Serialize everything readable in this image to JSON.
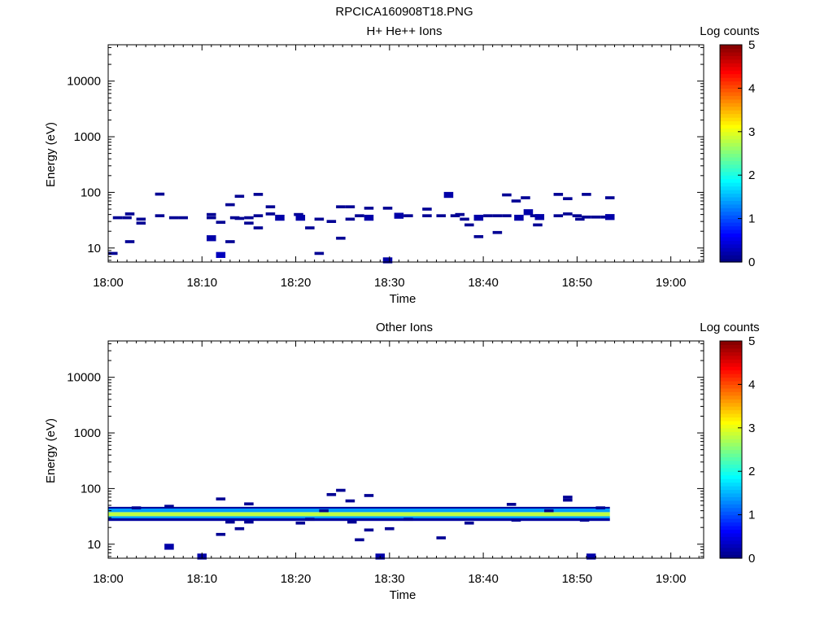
{
  "file_title": "RPCICA160908T18.PNG",
  "chart_data": [
    {
      "type": "heatmap",
      "title": "H+ He++ Ions",
      "xlabel": "Time",
      "ylabel": "Energy (eV)",
      "x_ticks": [
        "18:00",
        "18:10",
        "18:20",
        "18:30",
        "18:40",
        "18:50",
        "19:00"
      ],
      "x_range_min": [
        0,
        63.5
      ],
      "y_ticks": [
        "10",
        "100",
        "1000",
        "10000"
      ],
      "y_log": true,
      "y_range_ev": [
        5.6,
        45000
      ],
      "colorbar": {
        "label": "Log counts",
        "ticks": [
          "0",
          "1",
          "2",
          "3",
          "4",
          "5"
        ],
        "range": [
          0,
          5
        ]
      },
      "cells": [
        [
          0,
          8,
          0.1
        ],
        [
          0.5,
          35,
          0.1
        ],
        [
          1.5,
          35,
          0.1
        ],
        [
          1.8,
          13,
          0.1
        ],
        [
          1.8,
          41,
          0.1
        ],
        [
          3,
          33,
          0.1
        ],
        [
          3,
          28,
          0.1
        ],
        [
          5,
          38,
          0.1
        ],
        [
          5,
          93,
          0.1
        ],
        [
          6.5,
          35,
          0.1
        ],
        [
          7.5,
          35,
          0.1
        ],
        [
          10.5,
          40,
          0.1
        ],
        [
          10.5,
          35,
          0.1
        ],
        [
          10.5,
          15,
          0.2
        ],
        [
          11.5,
          7.5,
          0.3
        ],
        [
          11.5,
          29,
          0.1
        ],
        [
          12.5,
          60,
          0.1
        ],
        [
          12.5,
          13,
          0.1
        ],
        [
          13,
          35,
          0.1
        ],
        [
          13.5,
          85,
          0.1
        ],
        [
          13.5,
          34,
          0.1
        ],
        [
          14.5,
          28,
          0.1
        ],
        [
          14.5,
          35,
          0.1
        ],
        [
          15.5,
          92,
          0.1
        ],
        [
          15.5,
          38,
          0.1
        ],
        [
          15.5,
          23,
          0.1
        ],
        [
          16.8,
          55,
          0.1
        ],
        [
          16.8,
          41,
          0.1
        ],
        [
          17.8,
          35,
          0.2
        ],
        [
          19.8,
          40,
          0.1
        ],
        [
          20,
          35,
          0.2
        ],
        [
          21,
          23,
          0.1
        ],
        [
          22,
          33,
          0.1
        ],
        [
          22,
          8,
          0.1
        ],
        [
          23.3,
          30,
          0.1
        ],
        [
          24.3,
          55,
          0.1
        ],
        [
          24.3,
          15,
          0.1
        ],
        [
          25.3,
          55,
          0.1
        ],
        [
          25.3,
          33,
          0.1
        ],
        [
          26.3,
          38,
          0.1
        ],
        [
          27.3,
          52,
          0.1
        ],
        [
          27.3,
          35,
          0.2
        ],
        [
          29.3,
          52,
          0.1
        ],
        [
          29.3,
          6,
          0.2
        ],
        [
          30.5,
          38,
          0.2
        ],
        [
          31.5,
          38,
          0.1
        ],
        [
          33.5,
          38,
          0.1
        ],
        [
          33.5,
          50,
          0.1
        ],
        [
          35,
          38,
          0.1
        ],
        [
          35.8,
          90,
          0.2
        ],
        [
          36.5,
          38,
          0.1
        ],
        [
          37,
          40,
          0.1
        ],
        [
          37.5,
          33,
          0.1
        ],
        [
          38,
          26,
          0.1
        ],
        [
          39,
          35,
          0.2
        ],
        [
          39,
          16,
          0.1
        ],
        [
          40,
          38,
          0.1
        ],
        [
          41,
          38,
          0.1
        ],
        [
          41,
          19,
          0.1
        ],
        [
          42,
          90,
          0.1
        ],
        [
          42,
          38,
          0.1
        ],
        [
          43,
          70,
          0.1
        ],
        [
          43.3,
          35,
          0.2
        ],
        [
          44,
          80,
          0.1
        ],
        [
          44.3,
          44,
          0.2
        ],
        [
          45,
          38,
          0.1
        ],
        [
          45.3,
          26,
          0.1
        ],
        [
          45.5,
          36,
          0.2
        ],
        [
          47.5,
          92,
          0.1
        ],
        [
          47.5,
          38,
          0.1
        ],
        [
          48.5,
          77,
          0.1
        ],
        [
          48.5,
          41,
          0.1
        ],
        [
          49.5,
          38,
          0.1
        ],
        [
          49.8,
          33,
          0.1
        ],
        [
          50.5,
          92,
          0.1
        ],
        [
          50.5,
          36,
          0.1
        ],
        [
          51.5,
          36,
          0.1
        ],
        [
          52.5,
          36,
          0.1
        ],
        [
          53,
          80,
          0.1
        ],
        [
          53,
          36,
          0.2
        ]
      ]
    },
    {
      "type": "heatmap",
      "title": "Other Ions",
      "xlabel": "Time",
      "ylabel": "Energy (eV)",
      "x_ticks": [
        "18:00",
        "18:10",
        "18:20",
        "18:30",
        "18:40",
        "18:50",
        "19:00"
      ],
      "x_range_min": [
        0,
        63.5
      ],
      "y_ticks": [
        "10",
        "100",
        "1000",
        "10000"
      ],
      "y_log": true,
      "y_range_ev": [
        5.6,
        45000
      ],
      "colorbar": {
        "label": "Log counts",
        "ticks": [
          "0",
          "1",
          "2",
          "3",
          "4",
          "5"
        ],
        "range": [
          0,
          5
        ]
      },
      "band": {
        "t_start_min": 0,
        "t_end_min": 53.5,
        "energy_ev": [
          27,
          46
        ],
        "core_log_counts": 2.8,
        "edge_log_counts": 1.4
      },
      "cells": [
        [
          2.5,
          45,
          0.1
        ],
        [
          6,
          48,
          0.1
        ],
        [
          6,
          9,
          0.2
        ],
        [
          9.5,
          6,
          0.2
        ],
        [
          11.5,
          65,
          0.1
        ],
        [
          11.5,
          15,
          0.1
        ],
        [
          12.5,
          25,
          0.1
        ],
        [
          13.5,
          19,
          0.1
        ],
        [
          14.5,
          53,
          0.1
        ],
        [
          14.5,
          25,
          0.1
        ],
        [
          20,
          24,
          0.1
        ],
        [
          21,
          28,
          0.1
        ],
        [
          22.5,
          40,
          0.1
        ],
        [
          23.3,
          78,
          0.1
        ],
        [
          24.3,
          93,
          0.1
        ],
        [
          25.3,
          60,
          0.1
        ],
        [
          25.5,
          25,
          0.1
        ],
        [
          26.3,
          12,
          0.1
        ],
        [
          27.3,
          75,
          0.1
        ],
        [
          27.3,
          18,
          0.1
        ],
        [
          28.5,
          6,
          0.2
        ],
        [
          29.5,
          19,
          0.1
        ],
        [
          31.5,
          28,
          0.1
        ],
        [
          35,
          13,
          0.1
        ],
        [
          38,
          24,
          0.1
        ],
        [
          42.5,
          52,
          0.1
        ],
        [
          43,
          27,
          0.1
        ],
        [
          46.5,
          40,
          0.1
        ],
        [
          48.5,
          62,
          0.1
        ],
        [
          48.5,
          70,
          0.1
        ],
        [
          50.3,
          27,
          0.1
        ],
        [
          51,
          6,
          0.2
        ],
        [
          52,
          45,
          0.1
        ]
      ]
    }
  ]
}
